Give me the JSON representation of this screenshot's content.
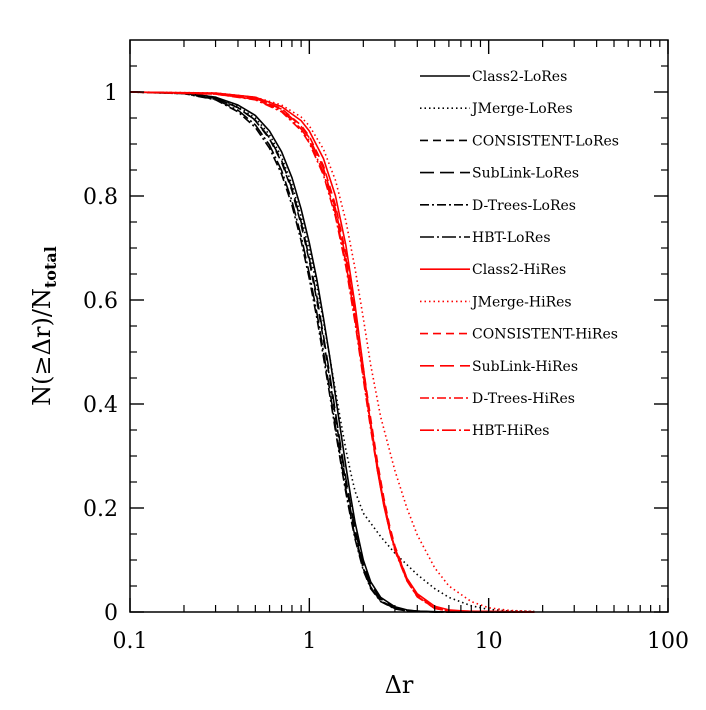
{
  "chart_data": {
    "type": "line",
    "xlabel": "Δr",
    "ylabel": "N(≥Δr)/N",
    "ylabel_sub": "total",
    "xscale": "log",
    "xlim": [
      0.1,
      100
    ],
    "ylim": [
      0,
      1.1
    ],
    "xticks": [
      {
        "value": 0.1,
        "label": "0.1"
      },
      {
        "value": 1,
        "label": "1"
      },
      {
        "value": 10,
        "label": "10"
      },
      {
        "value": 100,
        "label": "100"
      }
    ],
    "yticks": [
      {
        "value": 0,
        "label": "0"
      },
      {
        "value": 0.2,
        "label": "0.2"
      },
      {
        "value": 0.4,
        "label": "0.4"
      },
      {
        "value": 0.6,
        "label": "0.6"
      },
      {
        "value": 0.8,
        "label": "0.8"
      },
      {
        "value": 1,
        "label": "1"
      }
    ],
    "legend_position": "top-right",
    "grid": false,
    "colors": {
      "lores": "#000000",
      "hires": "#ff0000"
    },
    "series": [
      {
        "name": "Class2-LoRes",
        "color": "#000000",
        "dash": "solid",
        "points": [
          [
            0.1,
            1.0
          ],
          [
            0.2,
            0.998
          ],
          [
            0.3,
            0.99
          ],
          [
            0.4,
            0.975
          ],
          [
            0.5,
            0.955
          ],
          [
            0.6,
            0.925
          ],
          [
            0.7,
            0.885
          ],
          [
            0.8,
            0.835
          ],
          [
            0.9,
            0.775
          ],
          [
            1.0,
            0.71
          ],
          [
            1.1,
            0.64
          ],
          [
            1.2,
            0.565
          ],
          [
            1.3,
            0.49
          ],
          [
            1.4,
            0.415
          ],
          [
            1.5,
            0.345
          ],
          [
            1.6,
            0.28
          ],
          [
            1.7,
            0.222
          ],
          [
            1.8,
            0.172
          ],
          [
            2.0,
            0.1
          ],
          [
            2.2,
            0.058
          ],
          [
            2.5,
            0.028
          ],
          [
            3.0,
            0.01
          ],
          [
            3.5,
            0.004
          ],
          [
            4.0,
            0.0015
          ],
          [
            6.0,
            0.0
          ],
          [
            18.0,
            0.0
          ]
        ]
      },
      {
        "name": "JMerge-LoRes",
        "color": "#000000",
        "dash": "dotted",
        "points": [
          [
            0.1,
            1.0
          ],
          [
            0.2,
            0.998
          ],
          [
            0.3,
            0.99
          ],
          [
            0.4,
            0.972
          ],
          [
            0.5,
            0.95
          ],
          [
            0.6,
            0.918
          ],
          [
            0.7,
            0.875
          ],
          [
            0.8,
            0.822
          ],
          [
            0.9,
            0.76
          ],
          [
            1.0,
            0.695
          ],
          [
            1.1,
            0.628
          ],
          [
            1.2,
            0.558
          ],
          [
            1.3,
            0.49
          ],
          [
            1.4,
            0.425
          ],
          [
            1.5,
            0.365
          ],
          [
            1.6,
            0.312
          ],
          [
            1.7,
            0.268
          ],
          [
            1.8,
            0.232
          ],
          [
            2.0,
            0.19
          ],
          [
            2.5,
            0.145
          ],
          [
            3.0,
            0.113
          ],
          [
            4.0,
            0.072
          ],
          [
            5.0,
            0.045
          ],
          [
            6.0,
            0.028
          ],
          [
            8.0,
            0.012
          ],
          [
            10.0,
            0.005
          ],
          [
            13.0,
            0.002
          ],
          [
            18.0,
            0.001
          ]
        ]
      },
      {
        "name": "CONSISTENT-LoRes",
        "color": "#000000",
        "dash": "dashed",
        "points": [
          [
            0.1,
            1.0
          ],
          [
            0.2,
            0.998
          ],
          [
            0.3,
            0.988
          ],
          [
            0.4,
            0.97
          ],
          [
            0.5,
            0.945
          ],
          [
            0.6,
            0.91
          ],
          [
            0.7,
            0.865
          ],
          [
            0.8,
            0.81
          ],
          [
            0.9,
            0.745
          ],
          [
            1.0,
            0.675
          ],
          [
            1.1,
            0.6
          ],
          [
            1.2,
            0.523
          ],
          [
            1.3,
            0.448
          ],
          [
            1.4,
            0.375
          ],
          [
            1.5,
            0.308
          ],
          [
            1.6,
            0.248
          ],
          [
            1.7,
            0.195
          ],
          [
            1.8,
            0.15
          ],
          [
            2.0,
            0.085
          ],
          [
            2.2,
            0.048
          ],
          [
            2.5,
            0.022
          ],
          [
            3.0,
            0.007
          ],
          [
            3.5,
            0.0025
          ],
          [
            5.0,
            0.0
          ],
          [
            18.0,
            0.0
          ]
        ]
      },
      {
        "name": "SubLink-LoRes",
        "color": "#000000",
        "dash": "longdash",
        "points": [
          [
            0.1,
            1.0
          ],
          [
            0.2,
            0.998
          ],
          [
            0.3,
            0.988
          ],
          [
            0.4,
            0.97
          ],
          [
            0.5,
            0.946
          ],
          [
            0.6,
            0.912
          ],
          [
            0.7,
            0.868
          ],
          [
            0.8,
            0.814
          ],
          [
            0.9,
            0.75
          ],
          [
            1.0,
            0.68
          ],
          [
            1.1,
            0.607
          ],
          [
            1.2,
            0.531
          ],
          [
            1.3,
            0.456
          ],
          [
            1.4,
            0.383
          ],
          [
            1.5,
            0.316
          ],
          [
            1.6,
            0.256
          ],
          [
            1.7,
            0.203
          ],
          [
            1.8,
            0.158
          ],
          [
            2.0,
            0.092
          ],
          [
            2.2,
            0.053
          ],
          [
            2.5,
            0.025
          ],
          [
            3.0,
            0.008
          ],
          [
            3.5,
            0.003
          ],
          [
            5.0,
            0.0
          ],
          [
            18.0,
            0.0
          ]
        ]
      },
      {
        "name": "D-Trees-LoRes",
        "color": "#000000",
        "dash": "dotdash",
        "points": [
          [
            0.1,
            1.0
          ],
          [
            0.2,
            0.997
          ],
          [
            0.3,
            0.985
          ],
          [
            0.4,
            0.962
          ],
          [
            0.5,
            0.932
          ],
          [
            0.6,
            0.892
          ],
          [
            0.7,
            0.842
          ],
          [
            0.8,
            0.782
          ],
          [
            0.9,
            0.714
          ],
          [
            1.0,
            0.641
          ],
          [
            1.1,
            0.566
          ],
          [
            1.2,
            0.49
          ],
          [
            1.3,
            0.417
          ],
          [
            1.4,
            0.348
          ],
          [
            1.5,
            0.285
          ],
          [
            1.6,
            0.229
          ],
          [
            1.7,
            0.181
          ],
          [
            1.8,
            0.14
          ],
          [
            2.0,
            0.08
          ],
          [
            2.2,
            0.045
          ],
          [
            2.5,
            0.02
          ],
          [
            3.0,
            0.006
          ],
          [
            3.5,
            0.002
          ],
          [
            5.0,
            0.0
          ],
          [
            18.0,
            0.0
          ]
        ]
      },
      {
        "name": "HBT-LoRes",
        "color": "#000000",
        "dash": "longdot",
        "points": [
          [
            0.1,
            1.0
          ],
          [
            0.2,
            0.997
          ],
          [
            0.3,
            0.986
          ],
          [
            0.4,
            0.965
          ],
          [
            0.5,
            0.937
          ],
          [
            0.6,
            0.898
          ],
          [
            0.7,
            0.849
          ],
          [
            0.8,
            0.79
          ],
          [
            0.9,
            0.723
          ],
          [
            1.0,
            0.651
          ],
          [
            1.1,
            0.576
          ],
          [
            1.2,
            0.5
          ],
          [
            1.3,
            0.426
          ],
          [
            1.4,
            0.356
          ],
          [
            1.5,
            0.292
          ],
          [
            1.6,
            0.235
          ],
          [
            1.7,
            0.186
          ],
          [
            1.8,
            0.144
          ],
          [
            2.0,
            0.083
          ],
          [
            2.2,
            0.047
          ],
          [
            2.5,
            0.021
          ],
          [
            3.0,
            0.0065
          ],
          [
            3.5,
            0.0022
          ],
          [
            5.0,
            0.0
          ],
          [
            18.0,
            0.0
          ]
        ]
      },
      {
        "name": "Class2-HiRes",
        "color": "#ff0000",
        "dash": "solid",
        "points": [
          [
            0.1,
            1.0
          ],
          [
            0.3,
            0.998
          ],
          [
            0.5,
            0.99
          ],
          [
            0.7,
            0.972
          ],
          [
            0.9,
            0.945
          ],
          [
            1.0,
            0.925
          ],
          [
            1.2,
            0.872
          ],
          [
            1.4,
            0.8
          ],
          [
            1.6,
            0.705
          ],
          [
            1.8,
            0.59
          ],
          [
            2.0,
            0.47
          ],
          [
            2.2,
            0.36
          ],
          [
            2.4,
            0.272
          ],
          [
            2.6,
            0.205
          ],
          [
            2.8,
            0.158
          ],
          [
            3.0,
            0.123
          ],
          [
            3.5,
            0.065
          ],
          [
            4.0,
            0.035
          ],
          [
            5.0,
            0.011
          ],
          [
            6.0,
            0.004
          ],
          [
            8.0,
            0.001
          ],
          [
            18.0,
            0.0
          ]
        ]
      },
      {
        "name": "JMerge-HiRes",
        "color": "#ff0000",
        "dash": "dotted",
        "points": [
          [
            0.1,
            1.0
          ],
          [
            0.3,
            0.998
          ],
          [
            0.5,
            0.99
          ],
          [
            0.7,
            0.975
          ],
          [
            0.9,
            0.952
          ],
          [
            1.0,
            0.935
          ],
          [
            1.2,
            0.89
          ],
          [
            1.4,
            0.83
          ],
          [
            1.6,
            0.752
          ],
          [
            1.8,
            0.66
          ],
          [
            2.0,
            0.565
          ],
          [
            2.2,
            0.475
          ],
          [
            2.5,
            0.375
          ],
          [
            3.0,
            0.272
          ],
          [
            3.5,
            0.2
          ],
          [
            4.0,
            0.148
          ],
          [
            5.0,
            0.085
          ],
          [
            6.0,
            0.05
          ],
          [
            8.0,
            0.02
          ],
          [
            10.0,
            0.008
          ],
          [
            13.0,
            0.003
          ],
          [
            18.0,
            0.001
          ]
        ]
      },
      {
        "name": "CONSISTENT-HiRes",
        "color": "#ff0000",
        "dash": "dashed",
        "points": [
          [
            0.1,
            1.0
          ],
          [
            0.3,
            0.997
          ],
          [
            0.5,
            0.988
          ],
          [
            0.7,
            0.968
          ],
          [
            0.9,
            0.936
          ],
          [
            1.0,
            0.915
          ],
          [
            1.2,
            0.858
          ],
          [
            1.4,
            0.782
          ],
          [
            1.6,
            0.688
          ],
          [
            1.8,
            0.58
          ],
          [
            2.0,
            0.47
          ],
          [
            2.2,
            0.372
          ],
          [
            2.4,
            0.288
          ],
          [
            2.6,
            0.22
          ],
          [
            2.8,
            0.167
          ],
          [
            3.0,
            0.127
          ],
          [
            3.5,
            0.065
          ],
          [
            4.0,
            0.032
          ],
          [
            5.0,
            0.008
          ],
          [
            6.0,
            0.002
          ],
          [
            18.0,
            0.0
          ]
        ]
      },
      {
        "name": "SubLink-HiRes",
        "color": "#ff0000",
        "dash": "longdash",
        "points": [
          [
            0.1,
            1.0
          ],
          [
            0.3,
            0.997
          ],
          [
            0.5,
            0.988
          ],
          [
            0.7,
            0.967
          ],
          [
            0.9,
            0.934
          ],
          [
            1.0,
            0.912
          ],
          [
            1.2,
            0.853
          ],
          [
            1.4,
            0.775
          ],
          [
            1.6,
            0.68
          ],
          [
            1.8,
            0.572
          ],
          [
            2.0,
            0.462
          ],
          [
            2.2,
            0.364
          ],
          [
            2.4,
            0.281
          ],
          [
            2.6,
            0.214
          ],
          [
            2.8,
            0.162
          ],
          [
            3.0,
            0.122
          ],
          [
            3.5,
            0.062
          ],
          [
            4.0,
            0.03
          ],
          [
            5.0,
            0.007
          ],
          [
            6.0,
            0.002
          ],
          [
            18.0,
            0.0
          ]
        ]
      },
      {
        "name": "D-Trees-HiRes",
        "color": "#ff0000",
        "dash": "dotdash",
        "points": [
          [
            0.1,
            1.0
          ],
          [
            0.3,
            0.996
          ],
          [
            0.5,
            0.985
          ],
          [
            0.7,
            0.962
          ],
          [
            0.9,
            0.926
          ],
          [
            1.0,
            0.902
          ],
          [
            1.2,
            0.84
          ],
          [
            1.4,
            0.76
          ],
          [
            1.6,
            0.664
          ],
          [
            1.8,
            0.556
          ],
          [
            2.0,
            0.448
          ],
          [
            2.2,
            0.352
          ],
          [
            2.4,
            0.272
          ],
          [
            2.6,
            0.207
          ],
          [
            2.8,
            0.157
          ],
          [
            3.0,
            0.118
          ],
          [
            3.5,
            0.06
          ],
          [
            4.0,
            0.029
          ],
          [
            5.0,
            0.007
          ],
          [
            6.0,
            0.002
          ],
          [
            18.0,
            0.0
          ]
        ]
      },
      {
        "name": "HBT-HiRes",
        "color": "#ff0000",
        "dash": "longdot",
        "points": [
          [
            0.1,
            1.0
          ],
          [
            0.3,
            0.996
          ],
          [
            0.5,
            0.986
          ],
          [
            0.7,
            0.964
          ],
          [
            0.9,
            0.929
          ],
          [
            1.0,
            0.906
          ],
          [
            1.2,
            0.845
          ],
          [
            1.4,
            0.766
          ],
          [
            1.6,
            0.671
          ],
          [
            1.8,
            0.563
          ],
          [
            2.0,
            0.455
          ],
          [
            2.2,
            0.358
          ],
          [
            2.4,
            0.277
          ],
          [
            2.6,
            0.211
          ],
          [
            2.8,
            0.16
          ],
          [
            3.0,
            0.12
          ],
          [
            3.5,
            0.061
          ],
          [
            4.0,
            0.03
          ],
          [
            5.0,
            0.007
          ],
          [
            6.0,
            0.002
          ],
          [
            18.0,
            0.0
          ]
        ]
      }
    ]
  }
}
